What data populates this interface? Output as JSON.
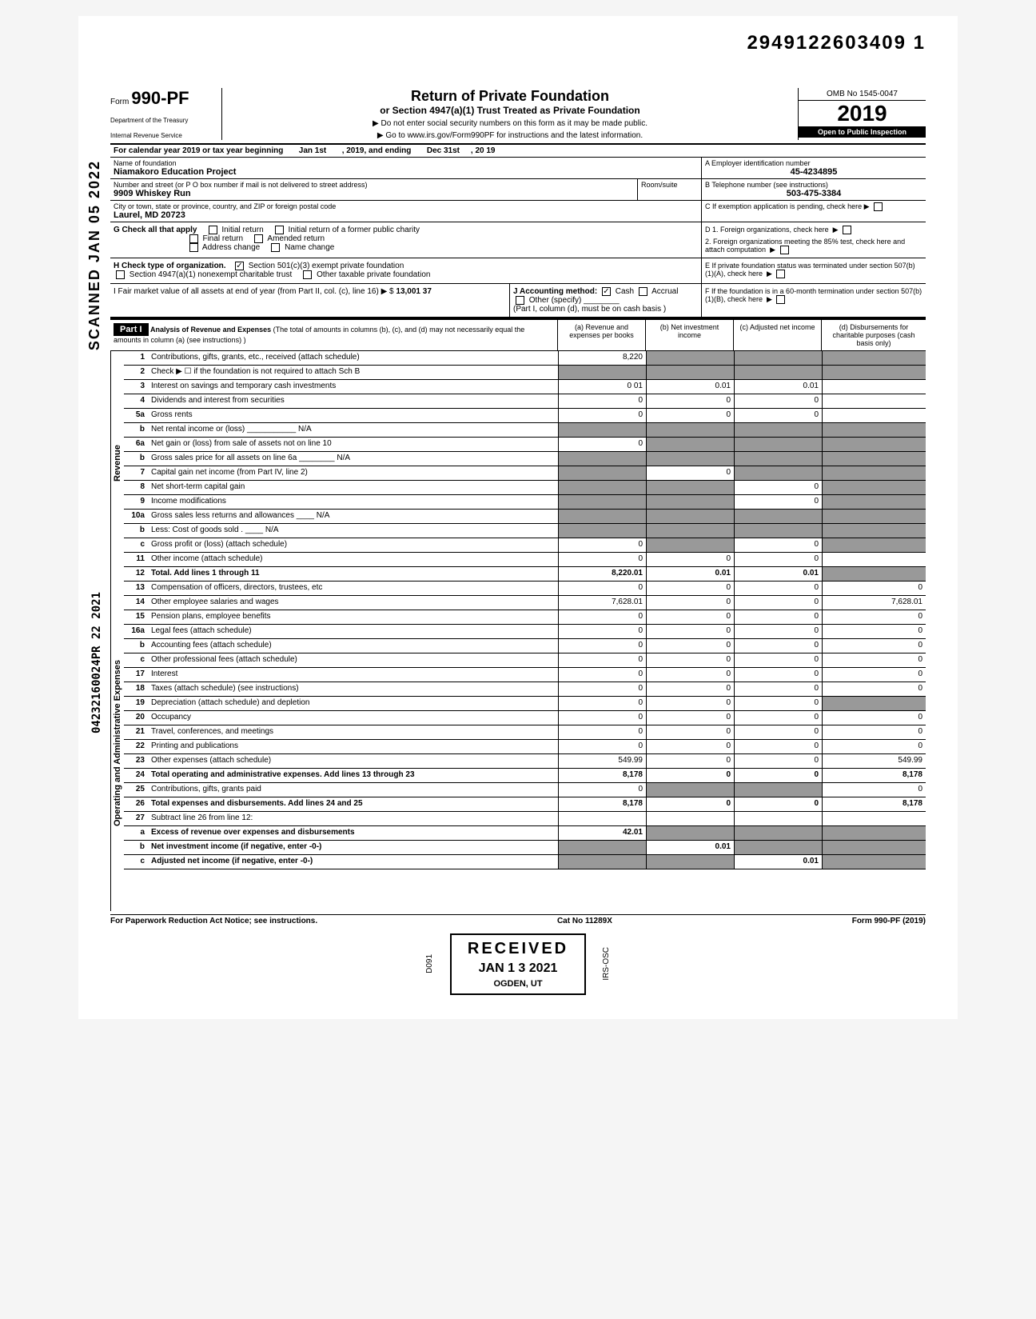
{
  "top_id": "2949122603409  1",
  "scanned_text": "SCANNED JAN 05 2022",
  "side_stamp": "04232160024PR 22 2021",
  "form": {
    "prefix": "Form",
    "number": "990-PF",
    "dept1": "Department of the Treasury",
    "dept2": "Internal Revenue Service"
  },
  "title": {
    "main": "Return of Private Foundation",
    "sub": "or Section 4947(a)(1) Trust Treated as Private Foundation",
    "instr1": "▶ Do not enter social security numbers on this form as it may be made public.",
    "instr2": "▶ Go to www.irs.gov/Form990PF for instructions and the latest information."
  },
  "right_header": {
    "omb": "OMB No 1545-0047",
    "year": "2019",
    "inspection": "Open to Public Inspection"
  },
  "cal_year": {
    "prefix": "For calendar year 2019 or tax year beginning",
    "begin": "Jan 1st",
    "mid": ", 2019, and ending",
    "end_month": "Dec 31st",
    "end_year": ", 20    19"
  },
  "name": {
    "label": "Name of foundation",
    "value": "Niamakoro Education Project",
    "addr_label": "Number and street (or P O  box number if mail is not delivered to street address)",
    "addr": "9909 Whiskey Run",
    "room_label": "Room/suite",
    "city_label": "City or town, state or province, country, and ZIP or foreign postal code",
    "city": "Laurel, MD 20723",
    "ein_label": "A  Employer identification number",
    "ein": "45-4234895",
    "phone_label": "B  Telephone number (see instructions)",
    "phone": "503-475-3384",
    "c_label": "C  If exemption application is pending, check here ▶"
  },
  "section_g": {
    "label": "G   Check all that apply",
    "initial": "Initial return",
    "former": "Initial return of a former public charity",
    "final": "Final return",
    "amended": "Amended return",
    "addr_change": "Address change",
    "name_change": "Name change",
    "d1": "D  1. Foreign organizations, check here",
    "d2": "2. Foreign organizations meeting the 85% test, check here and attach computation"
  },
  "section_h": {
    "label": "H   Check type of organization.",
    "opt1": "Section 501(c)(3) exempt private foundation",
    "opt2": "Section 4947(a)(1) nonexempt charitable trust",
    "opt3": "Other taxable private foundation",
    "e_label": "E  If private foundation status was terminated under section 507(b)(1)(A), check here"
  },
  "section_i": {
    "label": "I    Fair market value of all assets at end of year  (from Part II, col. (c), line 16) ▶  $",
    "value": "13,001 37",
    "j_label": "J   Accounting method:",
    "cash": "Cash",
    "accrual": "Accrual",
    "other": "Other (specify)",
    "j_note": "(Part I, column (d), must be on cash basis )",
    "f_label": "F  If the foundation is in a 60-month termination under section 507(b)(1)(B), check here"
  },
  "part1": {
    "label": "Part I",
    "title": "Analysis of Revenue and Expenses",
    "subtitle": "(The total of amounts in columns (b), (c), and (d) may not necessarily equal the amounts in column (a) (see instructions) )",
    "col_a": "(a) Revenue and expenses per books",
    "col_b": "(b) Net investment income",
    "col_c": "(c) Adjusted net income",
    "col_d": "(d) Disbursements for charitable purposes (cash basis only)"
  },
  "revenue_label": "Revenue",
  "expenses_label": "Operating and Administrative Expenses",
  "rows": [
    {
      "num": "1",
      "desc": "Contributions, gifts, grants, etc., received (attach schedule)",
      "a": "8,220",
      "b": "",
      "c": "",
      "d": "",
      "shade_b": true,
      "shade_c": true,
      "shade_d": true
    },
    {
      "num": "2",
      "desc": "Check ▶ ☐  if the foundation is not required to attach Sch  B",
      "a": "",
      "b": "",
      "c": "",
      "d": "",
      "shade_a": true,
      "shade_b": true,
      "shade_c": true,
      "shade_d": true
    },
    {
      "num": "3",
      "desc": "Interest on savings and temporary cash investments",
      "a": "0 01",
      "b": "0.01",
      "c": "0.01",
      "d": ""
    },
    {
      "num": "4",
      "desc": "Dividends and interest from securities",
      "a": "0",
      "b": "0",
      "c": "0",
      "d": ""
    },
    {
      "num": "5a",
      "desc": "Gross rents",
      "a": "0",
      "b": "0",
      "c": "0",
      "d": ""
    },
    {
      "num": "b",
      "desc": "Net rental income or (loss) ___________  N/A",
      "a": "",
      "b": "",
      "c": "",
      "d": "",
      "shade_a": true,
      "shade_b": true,
      "shade_c": true,
      "shade_d": true
    },
    {
      "num": "6a",
      "desc": "Net gain or (loss) from sale of assets not on line 10",
      "a": "0",
      "b": "",
      "c": "",
      "d": "",
      "shade_b": true,
      "shade_c": true,
      "shade_d": true
    },
    {
      "num": "b",
      "desc": "Gross sales price for all assets on line 6a ________ N/A",
      "a": "",
      "b": "",
      "c": "",
      "d": "",
      "shade_a": true,
      "shade_b": true,
      "shade_c": true,
      "shade_d": true
    },
    {
      "num": "7",
      "desc": "Capital gain net income (from Part IV, line 2)",
      "a": "",
      "b": "0",
      "c": "",
      "d": "",
      "shade_a": true,
      "shade_c": true,
      "shade_d": true
    },
    {
      "num": "8",
      "desc": "Net short-term capital gain",
      "a": "",
      "b": "",
      "c": "0",
      "d": "",
      "shade_a": true,
      "shade_b": true,
      "shade_d": true
    },
    {
      "num": "9",
      "desc": "Income modifications",
      "a": "",
      "b": "",
      "c": "0",
      "d": "",
      "shade_a": true,
      "shade_b": true,
      "shade_d": true
    },
    {
      "num": "10a",
      "desc": "Gross sales less returns and allowances ____ N/A",
      "a": "",
      "b": "",
      "c": "",
      "d": "",
      "shade_a": true,
      "shade_b": true,
      "shade_c": true,
      "shade_d": true
    },
    {
      "num": "b",
      "desc": "Less: Cost of goods sold  . ____ N/A",
      "a": "",
      "b": "",
      "c": "",
      "d": "",
      "shade_a": true,
      "shade_b": true,
      "shade_c": true,
      "shade_d": true
    },
    {
      "num": "c",
      "desc": "Gross profit or (loss) (attach schedule)",
      "a": "0",
      "b": "",
      "c": "0",
      "d": "",
      "shade_b": true,
      "shade_d": true
    },
    {
      "num": "11",
      "desc": "Other income (attach schedule)",
      "a": "0",
      "b": "0",
      "c": "0",
      "d": ""
    },
    {
      "num": "12",
      "desc": "Total. Add lines 1 through 11",
      "a": "8,220.01",
      "b": "0.01",
      "c": "0.01",
      "d": "",
      "bold": true,
      "shade_d": true
    },
    {
      "num": "13",
      "desc": "Compensation of officers, directors, trustees, etc",
      "a": "0",
      "b": "0",
      "c": "0",
      "d": "0"
    },
    {
      "num": "14",
      "desc": "Other employee salaries and wages",
      "a": "7,628.01",
      "b": "0",
      "c": "0",
      "d": "7,628.01"
    },
    {
      "num": "15",
      "desc": "Pension plans, employee benefits",
      "a": "0",
      "b": "0",
      "c": "0",
      "d": "0"
    },
    {
      "num": "16a",
      "desc": "Legal fees (attach schedule)",
      "a": "0",
      "b": "0",
      "c": "0",
      "d": "0"
    },
    {
      "num": "b",
      "desc": "Accounting fees (attach schedule)",
      "a": "0",
      "b": "0",
      "c": "0",
      "d": "0"
    },
    {
      "num": "c",
      "desc": "Other professional fees (attach schedule)",
      "a": "0",
      "b": "0",
      "c": "0",
      "d": "0"
    },
    {
      "num": "17",
      "desc": "Interest",
      "a": "0",
      "b": "0",
      "c": "0",
      "d": "0"
    },
    {
      "num": "18",
      "desc": "Taxes (attach schedule) (see instructions)",
      "a": "0",
      "b": "0",
      "c": "0",
      "d": "0"
    },
    {
      "num": "19",
      "desc": "Depreciation (attach schedule) and depletion",
      "a": "0",
      "b": "0",
      "c": "0",
      "d": "",
      "shade_d": true
    },
    {
      "num": "20",
      "desc": "Occupancy",
      "a": "0",
      "b": "0",
      "c": "0",
      "d": "0"
    },
    {
      "num": "21",
      "desc": "Travel, conferences, and meetings",
      "a": "0",
      "b": "0",
      "c": "0",
      "d": "0"
    },
    {
      "num": "22",
      "desc": "Printing and publications",
      "a": "0",
      "b": "0",
      "c": "0",
      "d": "0"
    },
    {
      "num": "23",
      "desc": "Other expenses (attach schedule)",
      "a": "549.99",
      "b": "0",
      "c": "0",
      "d": "549.99"
    },
    {
      "num": "24",
      "desc": "Total  operating  and  administrative  expenses. Add lines 13 through 23",
      "a": "8,178",
      "b": "0",
      "c": "0",
      "d": "8,178",
      "bold": true
    },
    {
      "num": "25",
      "desc": "Contributions, gifts, grants paid",
      "a": "0",
      "b": "",
      "c": "",
      "d": "0",
      "shade_b": true,
      "shade_c": true
    },
    {
      "num": "26",
      "desc": "Total expenses and disbursements. Add lines 24 and 25",
      "a": "8,178",
      "b": "0",
      "c": "0",
      "d": "8,178",
      "bold": true
    },
    {
      "num": "27",
      "desc": "Subtract line 26 from line 12:",
      "a": "",
      "b": "",
      "c": "",
      "d": ""
    },
    {
      "num": "a",
      "desc": "Excess of revenue over expenses and disbursements",
      "a": "42.01",
      "b": "",
      "c": "",
      "d": "",
      "bold": true,
      "shade_b": true,
      "shade_c": true,
      "shade_d": true
    },
    {
      "num": "b",
      "desc": "Net investment income (if negative, enter -0-)",
      "a": "",
      "b": "0.01",
      "c": "",
      "d": "",
      "bold": true,
      "shade_a": true,
      "shade_c": true,
      "shade_d": true
    },
    {
      "num": "c",
      "desc": "Adjusted net income (if negative, enter -0-)",
      "a": "",
      "b": "",
      "c": "0.01",
      "d": "",
      "bold": true,
      "shade_a": true,
      "shade_b": true,
      "shade_d": true
    }
  ],
  "footer": {
    "left": "For Paperwork Reduction Act Notice; see instructions.",
    "mid": "Cat  No  11289X",
    "right": "Form 990-PF (2019)"
  },
  "received": {
    "title": "RECEIVED",
    "date": "JAN 1 3 2021",
    "loc": "OGDEN, UT",
    "side1": "D091",
    "side2": "IRS-OSC"
  }
}
